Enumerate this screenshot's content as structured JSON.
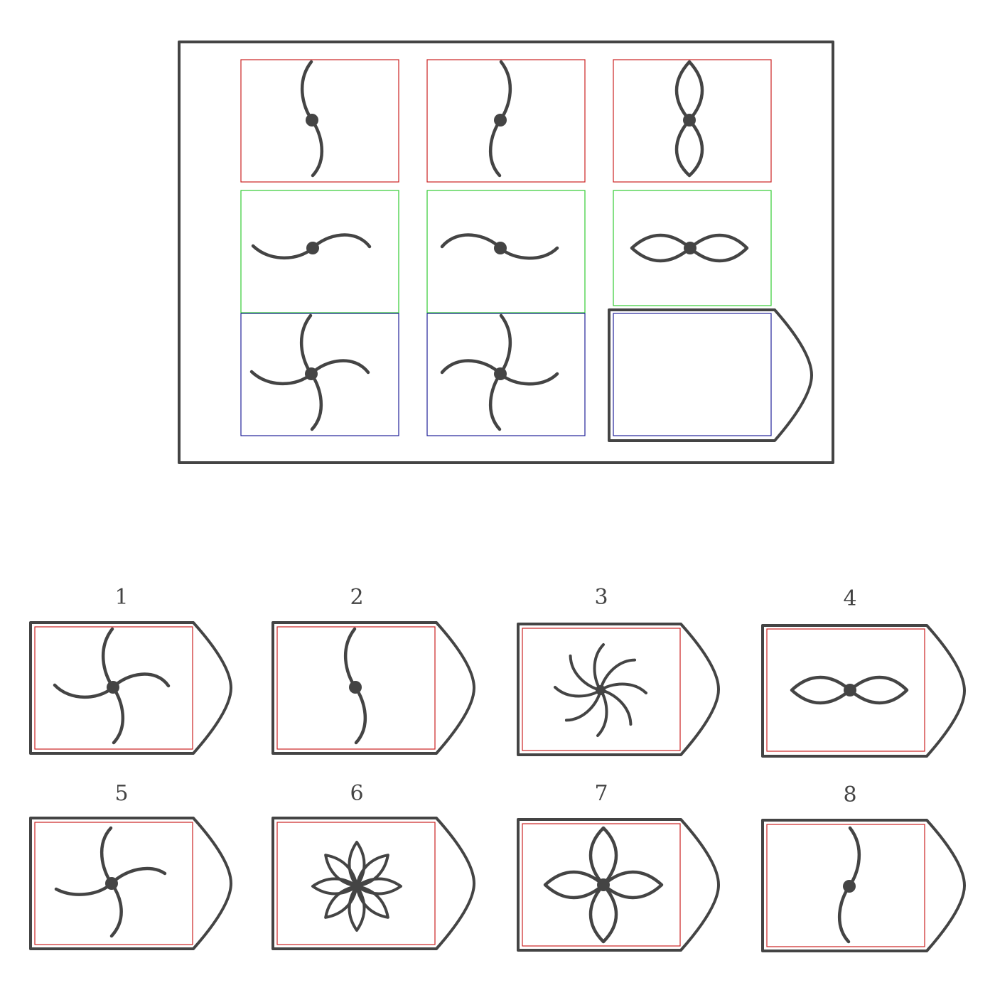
{
  "colors": {
    "line": "#444444",
    "row1_border": "#cc2222",
    "row2_border": "#33cc33",
    "row3_border": "#222299",
    "option_inner_border": "#cc2222"
  },
  "matrix": {
    "cells": [
      {
        "row": 1,
        "col": 1,
        "figure": "s-curve-2-blades",
        "border": "red"
      },
      {
        "row": 1,
        "col": 2,
        "figure": "mirrored-s-curve-2-blades",
        "border": "red"
      },
      {
        "row": 1,
        "col": 3,
        "figure": "vertical-2-petals",
        "border": "red"
      },
      {
        "row": 2,
        "col": 1,
        "figure": "horizontal-s-curve-2-blades",
        "border": "green"
      },
      {
        "row": 2,
        "col": 2,
        "figure": "mirrored-horizontal-s-curve-2-blades",
        "border": "green"
      },
      {
        "row": 2,
        "col": 3,
        "figure": "horizontal-2-petals",
        "border": "green"
      },
      {
        "row": 3,
        "col": 1,
        "figure": "pinwheel-4-blades",
        "border": "blue"
      },
      {
        "row": 3,
        "col": 2,
        "figure": "mirrored-pinwheel-4-blades",
        "border": "blue"
      },
      {
        "row": 3,
        "col": 3,
        "figure": "empty-answer-slot",
        "border": "blue"
      }
    ]
  },
  "options": [
    {
      "number": "1",
      "figure": "pinwheel-4-blades"
    },
    {
      "number": "2",
      "figure": "s-curve-2-blades"
    },
    {
      "number": "3",
      "figure": "pinwheel-8-blades"
    },
    {
      "number": "4",
      "figure": "horizontal-2-petals"
    },
    {
      "number": "5",
      "figure": "pinwheel-4-blades"
    },
    {
      "number": "6",
      "figure": "flower-8-petals"
    },
    {
      "number": "7",
      "figure": "cross-4-petals"
    },
    {
      "number": "8",
      "figure": "s-curve-2-blades"
    }
  ]
}
